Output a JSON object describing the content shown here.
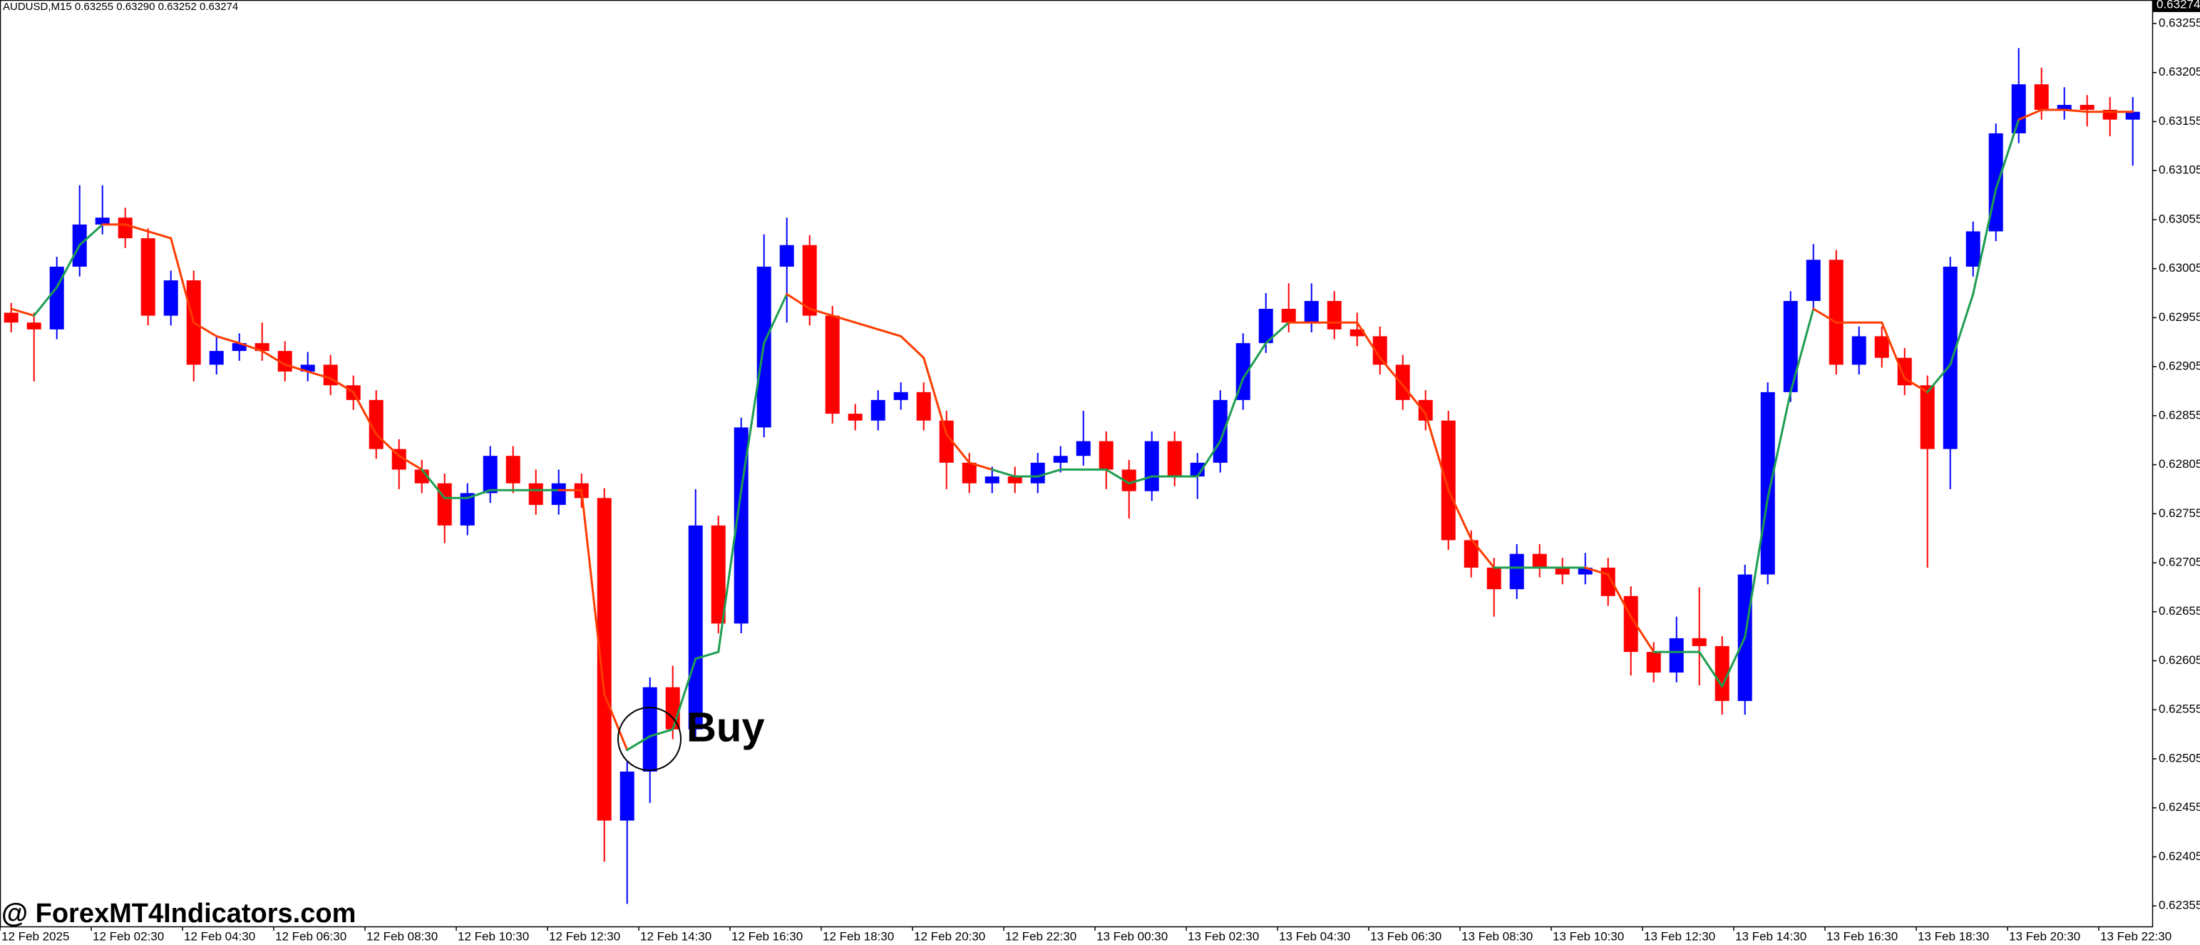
{
  "header": "AUDUSD,M15  0.63255 0.63290 0.63252 0.63274",
  "chart_data": {
    "type": "candlestick",
    "up_color": "#0000ff",
    "down_color": "#ff0000",
    "open": [
      0.6296,
      0.6295,
      0.62943,
      0.63007,
      0.6305,
      0.63057,
      0.63036,
      0.62957,
      0.62993,
      0.62907,
      0.62921,
      0.62929,
      0.62921,
      0.629,
      0.62907,
      0.62886,
      0.62871,
      0.62821,
      0.628,
      0.62786,
      0.62743,
      0.62776,
      0.62814,
      0.62786,
      0.62764,
      0.62786,
      0.62771,
      0.62442,
      0.62492,
      0.62578,
      0.62535,
      0.62743,
      0.62643,
      0.62843,
      0.63007,
      0.63029,
      0.62957,
      0.62857,
      0.6285,
      0.62871,
      0.62879,
      0.6285,
      0.62807,
      0.62786,
      0.62793,
      0.62786,
      0.62807,
      0.62814,
      0.62829,
      0.628,
      0.62778,
      0.62829,
      0.62793,
      0.62807,
      0.62871,
      0.62929,
      0.62964,
      0.6295,
      0.62972,
      0.62943,
      0.62936,
      0.62907,
      0.62871,
      0.6285,
      0.62728,
      0.627,
      0.62678,
      0.62714,
      0.627,
      0.62693,
      0.627,
      0.62671,
      0.62614,
      0.62593,
      0.62628,
      0.6262,
      0.62564,
      0.62693,
      0.62879,
      0.62972,
      0.63014,
      0.62907,
      0.62936,
      0.62914,
      0.62886,
      0.62821,
      0.63007,
      0.63043,
      0.63143,
      0.63193,
      0.63167,
      0.63172,
      0.63167,
      0.63157
    ],
    "high": [
      0.6297,
      0.6296,
      0.63017,
      0.6309,
      0.6309,
      0.63067,
      0.63046,
      0.63003,
      0.63003,
      0.62935,
      0.62939,
      0.6295,
      0.62931,
      0.6292,
      0.62917,
      0.62896,
      0.62881,
      0.62831,
      0.6281,
      0.62796,
      0.62786,
      0.62824,
      0.62824,
      0.628,
      0.628,
      0.62796,
      0.62781,
      0.62502,
      0.62588,
      0.626,
      0.6278,
      0.62753,
      0.62853,
      0.6304,
      0.63057,
      0.63039,
      0.62967,
      0.62867,
      0.62881,
      0.62889,
      0.62889,
      0.6286,
      0.62817,
      0.62803,
      0.62803,
      0.62817,
      0.62824,
      0.6286,
      0.62839,
      0.6281,
      0.62839,
      0.62839,
      0.62817,
      0.62881,
      0.62939,
      0.6298,
      0.6299,
      0.6299,
      0.62982,
      0.6296,
      0.62946,
      0.62917,
      0.62881,
      0.6286,
      0.62738,
      0.6271,
      0.62724,
      0.62724,
      0.6271,
      0.62715,
      0.6271,
      0.62681,
      0.62624,
      0.6265,
      0.6268,
      0.6263,
      0.62703,
      0.62889,
      0.62982,
      0.6303,
      0.63024,
      0.62946,
      0.62946,
      0.62924,
      0.62896,
      0.63017,
      0.63053,
      0.63153,
      0.6323,
      0.6321,
      0.6319,
      0.63182,
      0.6318,
      0.6318
    ],
    "low": [
      0.6294,
      0.6289,
      0.62933,
      0.62997,
      0.6304,
      0.63026,
      0.62947,
      0.62947,
      0.6289,
      0.62897,
      0.62911,
      0.62911,
      0.6289,
      0.6289,
      0.62876,
      0.62861,
      0.62811,
      0.6278,
      0.62776,
      0.62725,
      0.62733,
      0.62766,
      0.62776,
      0.62754,
      0.62754,
      0.62761,
      0.624,
      0.62357,
      0.6246,
      0.62525,
      0.62525,
      0.62633,
      0.62633,
      0.62833,
      0.6295,
      0.62947,
      0.62847,
      0.6284,
      0.6284,
      0.62861,
      0.6284,
      0.6278,
      0.62776,
      0.62776,
      0.62776,
      0.62776,
      0.62797,
      0.62804,
      0.6278,
      0.6275,
      0.62768,
      0.62783,
      0.6277,
      0.62797,
      0.62861,
      0.62919,
      0.6294,
      0.6294,
      0.62933,
      0.62926,
      0.62897,
      0.62861,
      0.6284,
      0.62718,
      0.6269,
      0.6265,
      0.62668,
      0.6269,
      0.62683,
      0.62683,
      0.62661,
      0.6259,
      0.62583,
      0.62583,
      0.6258,
      0.6255,
      0.6255,
      0.62683,
      0.62869,
      0.62962,
      0.62897,
      0.62897,
      0.62904,
      0.62876,
      0.627,
      0.6278,
      0.62997,
      0.63033,
      0.63133,
      0.63157,
      0.63157,
      0.6315,
      0.6314,
      0.6311
    ],
    "close": [
      0.6295,
      0.62943,
      0.63007,
      0.6305,
      0.63057,
      0.63036,
      0.62957,
      0.62993,
      0.62907,
      0.62921,
      0.62929,
      0.62921,
      0.629,
      0.62907,
      0.62886,
      0.62871,
      0.62821,
      0.628,
      0.62786,
      0.62743,
      0.62776,
      0.62814,
      0.62786,
      0.62764,
      0.62786,
      0.62771,
      0.62442,
      0.62492,
      0.62578,
      0.62535,
      0.62743,
      0.62643,
      0.62843,
      0.63007,
      0.63029,
      0.62957,
      0.62857,
      0.6285,
      0.62871,
      0.62879,
      0.6285,
      0.62807,
      0.62786,
      0.62793,
      0.62786,
      0.62807,
      0.62814,
      0.62829,
      0.628,
      0.62778,
      0.62829,
      0.62793,
      0.62807,
      0.62871,
      0.62929,
      0.62964,
      0.6295,
      0.62972,
      0.62943,
      0.62936,
      0.62907,
      0.62871,
      0.6285,
      0.62728,
      0.627,
      0.62678,
      0.62714,
      0.627,
      0.62693,
      0.627,
      0.62671,
      0.62614,
      0.62593,
      0.62628,
      0.6262,
      0.62564,
      0.62693,
      0.62879,
      0.62972,
      0.63014,
      0.62907,
      0.62936,
      0.62914,
      0.62886,
      0.62821,
      0.63007,
      0.63043,
      0.63143,
      0.63193,
      0.63167,
      0.63172,
      0.63167,
      0.63157,
      0.63165
    ],
    "signal": {
      "up_color": "#1e9e50",
      "down_color": "#ff3c00",
      "values": [
        0.62964,
        0.62957,
        0.62986,
        0.63029,
        0.6305,
        0.6305,
        0.63043,
        0.63036,
        0.6295,
        0.62936,
        0.62929,
        0.62921,
        0.62907,
        0.629,
        0.62893,
        0.62879,
        0.62836,
        0.62814,
        0.628,
        0.62771,
        0.62771,
        0.62779,
        0.62779,
        0.62779,
        0.62779,
        0.62779,
        0.62571,
        0.62514,
        0.62528,
        0.62535,
        0.62607,
        0.62614,
        0.62779,
        0.62929,
        0.62979,
        0.62964,
        0.62957,
        0.6295,
        0.62943,
        0.62936,
        0.62914,
        0.62836,
        0.62807,
        0.628,
        0.62793,
        0.62793,
        0.628,
        0.628,
        0.628,
        0.62786,
        0.62793,
        0.62793,
        0.62793,
        0.62829,
        0.62893,
        0.62929,
        0.6295,
        0.6295,
        0.6295,
        0.6295,
        0.62914,
        0.62886,
        0.62857,
        0.62779,
        0.62729,
        0.627,
        0.627,
        0.627,
        0.627,
        0.627,
        0.62693,
        0.6265,
        0.62614,
        0.62614,
        0.62614,
        0.62579,
        0.62629,
        0.62771,
        0.62879,
        0.62964,
        0.6295,
        0.6295,
        0.6295,
        0.62893,
        0.62879,
        0.62907,
        0.62979,
        0.63086,
        0.63157,
        0.63167,
        0.63167,
        0.63165,
        0.63165,
        0.63165
      ],
      "trend": [
        "down",
        "down",
        "up",
        "up",
        "up",
        "down",
        "down",
        "down",
        "down",
        "down",
        "down",
        "down",
        "down",
        "down",
        "down",
        "down",
        "down",
        "down",
        "down",
        "up",
        "up",
        "up",
        "up",
        "up",
        "up",
        "down",
        "down",
        "down",
        "up",
        "up",
        "up",
        "up",
        "up",
        "up",
        "up",
        "down",
        "down",
        "down",
        "down",
        "down",
        "down",
        "down",
        "down",
        "down",
        "up",
        "up",
        "up",
        "up",
        "up",
        "up",
        "up",
        "up",
        "up",
        "up",
        "up",
        "up",
        "up",
        "down",
        "down",
        "down",
        "down",
        "down",
        "down",
        "down",
        "down",
        "down",
        "up",
        "up",
        "up",
        "up",
        "down",
        "down",
        "down",
        "up",
        "up",
        "up",
        "up",
        "up",
        "up",
        "up",
        "down",
        "down",
        "down",
        "down",
        "down",
        "up",
        "up",
        "up",
        "up",
        "down",
        "down",
        "down",
        "down",
        "down"
      ]
    },
    "x_labels": [
      "12 Feb 2025",
      "12 Feb 02:30",
      "12 Feb 04:30",
      "12 Feb 06:30",
      "12 Feb 08:30",
      "12 Feb 10:30",
      "12 Feb 12:30",
      "12 Feb 14:30",
      "12 Feb 16:30",
      "12 Feb 18:30",
      "12 Feb 20:30",
      "12 Feb 22:30",
      "13 Feb 00:30",
      "13 Feb 02:30",
      "13 Feb 04:30",
      "13 Feb 06:30",
      "13 Feb 08:30",
      "13 Feb 10:30",
      "13 Feb 12:30",
      "13 Feb 14:30",
      "13 Feb 16:30",
      "13 Feb 18:30",
      "13 Feb 20:30",
      "13 Feb 22:30"
    ],
    "ylim": [
      0.62334,
      0.63279
    ],
    "yticks": [
      0.62355,
      0.62405,
      0.62455,
      0.62505,
      0.62555,
      0.62605,
      0.62655,
      0.62705,
      0.62755,
      0.62805,
      0.62855,
      0.62905,
      0.62955,
      0.63005,
      0.63055,
      0.63105,
      0.63155,
      0.63205,
      0.63255
    ],
    "last_price": 0.63274,
    "annotation": "Buy",
    "watermark": "@ ForexMT4Indicators.com"
  }
}
